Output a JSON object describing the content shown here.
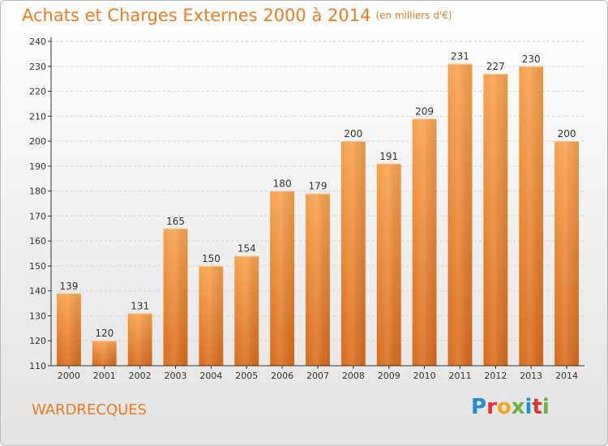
{
  "title": "Achats et Charges Externes 2000 à 2014",
  "subtitle": "(en milliers d'€)",
  "commune": "WARDRECQUES",
  "logo": {
    "letters": [
      {
        "char": "P",
        "color": "#1f8fd6"
      },
      {
        "char": "r",
        "color": "#e5322d"
      },
      {
        "char": "o",
        "color": "#f7a51c"
      },
      {
        "char": "x",
        "color": "#6db33f"
      },
      {
        "char": "i",
        "color": "#1f8fd6"
      },
      {
        "char": "t",
        "color": "#e5322d"
      },
      {
        "char": "i",
        "color": "#6db33f"
      }
    ]
  },
  "colors": {
    "accent": "#f07b1f",
    "bar_top": "#f7a24e",
    "bar_bottom": "#d96b1a",
    "axis": "#333333",
    "grid": "#d4d4d4"
  },
  "chart_data": {
    "type": "bar",
    "categories": [
      "2000",
      "2001",
      "2002",
      "2003",
      "2004",
      "2005",
      "2006",
      "2007",
      "2008",
      "2009",
      "2010",
      "2011",
      "2012",
      "2013",
      "2014"
    ],
    "values": [
      139,
      120,
      131,
      165,
      150,
      154,
      180,
      179,
      200,
      191,
      209,
      231,
      227,
      230,
      200
    ],
    "ylim": [
      110,
      240
    ],
    "yticks": [
      110,
      120,
      130,
      140,
      150,
      160,
      170,
      180,
      190,
      200,
      210,
      220,
      230,
      240
    ],
    "grid": true,
    "data_labels": true,
    "xlabel": "",
    "ylabel": ""
  }
}
